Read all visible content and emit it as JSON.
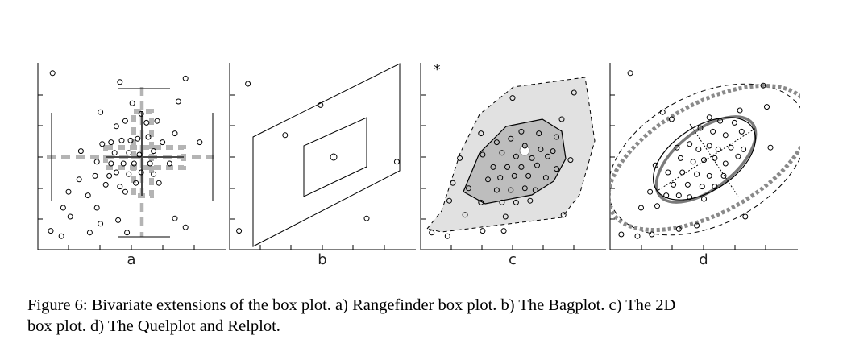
{
  "caption": {
    "line1": "Figure 6: Bivariate extensions of the box plot. a) Rangefinder box plot. b) The Bagplot. c) The 2D",
    "line2": "box plot. d) The Quelplot and Relplot."
  },
  "chart_data": [
    {
      "type": "scatter",
      "panel": "a",
      "title": "a",
      "grid": false,
      "xlim": [
        0,
        10
      ],
      "ylim": [
        0,
        10
      ],
      "points": [
        [
          0.6,
          9.6
        ],
        [
          4.4,
          9.1
        ],
        [
          8.1,
          9.3
        ],
        [
          7.7,
          8.0
        ],
        [
          5.1,
          7.9
        ],
        [
          5.6,
          7.3
        ],
        [
          3.3,
          7.4
        ],
        [
          4.2,
          6.6
        ],
        [
          4.7,
          6.9
        ],
        [
          5.9,
          6.8
        ],
        [
          6.5,
          6.9
        ],
        [
          8.9,
          5.7
        ],
        [
          2.2,
          5.2
        ],
        [
          3.4,
          5.6
        ],
        [
          3.9,
          5.7
        ],
        [
          4.5,
          5.8
        ],
        [
          5.0,
          5.8
        ],
        [
          5.4,
          5.9
        ],
        [
          6.0,
          6.0
        ],
        [
          6.8,
          5.7
        ],
        [
          7.5,
          6.2
        ],
        [
          4.1,
          5.1
        ],
        [
          4.9,
          5.1
        ],
        [
          5.5,
          5.0
        ],
        [
          6.3,
          5.2
        ],
        [
          3.1,
          4.6
        ],
        [
          3.9,
          4.5
        ],
        [
          4.6,
          4.5
        ],
        [
          5.2,
          4.5
        ],
        [
          6.1,
          4.5
        ],
        [
          7.2,
          4.5
        ],
        [
          3.0,
          3.8
        ],
        [
          3.8,
          3.8
        ],
        [
          4.2,
          4.0
        ],
        [
          4.9,
          3.9
        ],
        [
          5.6,
          4.0
        ],
        [
          6.3,
          3.9
        ],
        [
          2.1,
          3.6
        ],
        [
          3.6,
          3.3
        ],
        [
          4.4,
          3.2
        ],
        [
          5.3,
          3.4
        ],
        [
          6.6,
          3.4
        ],
        [
          1.5,
          2.9
        ],
        [
          2.6,
          2.7
        ],
        [
          4.7,
          2.9
        ],
        [
          1.2,
          2.0
        ],
        [
          3.1,
          2.0
        ],
        [
          1.6,
          1.5
        ],
        [
          3.3,
          1.1
        ],
        [
          4.3,
          1.3
        ],
        [
          7.5,
          1.4
        ],
        [
          0.5,
          0.7
        ],
        [
          1.1,
          0.4
        ],
        [
          2.7,
          0.6
        ],
        [
          4.8,
          0.6
        ],
        [
          8.1,
          0.9
        ]
      ]
    },
    {
      "type": "scatter",
      "panel": "b",
      "title": "b",
      "grid": false,
      "xlim": [
        0,
        10
      ],
      "ylim": [
        0,
        10
      ],
      "points": [
        [
          0.8,
          9.0
        ],
        [
          4.9,
          7.8
        ],
        [
          2.9,
          6.1
        ],
        [
          9.2,
          4.6
        ],
        [
          7.5,
          1.4
        ],
        [
          0.3,
          0.7
        ]
      ],
      "median": [
        5.5,
        4.0
      ]
    },
    {
      "type": "scatter",
      "panel": "c",
      "title": "c",
      "grid": false,
      "xlim": [
        0,
        10
      ],
      "ylim": [
        0,
        10
      ],
      "outlier_marker": "*",
      "points": [
        [
          5.0,
          8.2
        ],
        [
          8.5,
          8.5
        ],
        [
          7.8,
          7.0
        ],
        [
          3.2,
          6.2
        ],
        [
          5.5,
          6.3
        ],
        [
          6.5,
          6.2
        ],
        [
          7.5,
          6.0
        ],
        [
          2.0,
          4.8
        ],
        [
          4.1,
          5.7
        ],
        [
          4.9,
          5.9
        ],
        [
          5.7,
          5.5
        ],
        [
          6.6,
          5.3
        ],
        [
          7.3,
          5.2
        ],
        [
          3.3,
          5.0
        ],
        [
          4.4,
          5.1
        ],
        [
          5.2,
          4.9
        ],
        [
          6.1,
          4.8
        ],
        [
          7.0,
          4.9
        ],
        [
          8.3,
          4.7
        ],
        [
          3.9,
          4.3
        ],
        [
          4.7,
          4.3
        ],
        [
          5.5,
          4.3
        ],
        [
          6.4,
          4.4
        ],
        [
          7.5,
          4.2
        ],
        [
          3.6,
          3.6
        ],
        [
          4.3,
          3.7
        ],
        [
          5.1,
          3.8
        ],
        [
          5.9,
          3.8
        ],
        [
          6.9,
          3.7
        ],
        [
          1.6,
          3.4
        ],
        [
          2.5,
          3.1
        ],
        [
          4.1,
          3.0
        ],
        [
          4.9,
          3.0
        ],
        [
          5.7,
          3.1
        ],
        [
          6.3,
          3.0
        ],
        [
          1.4,
          2.4
        ],
        [
          3.2,
          2.3
        ],
        [
          4.4,
          2.3
        ],
        [
          5.2,
          2.3
        ],
        [
          6.0,
          2.4
        ],
        [
          2.3,
          1.6
        ],
        [
          4.6,
          1.5
        ],
        [
          7.9,
          1.6
        ],
        [
          0.4,
          0.6
        ],
        [
          1.3,
          0.4
        ],
        [
          3.3,
          0.7
        ],
        [
          4.5,
          0.7
        ]
      ],
      "median": [
        5.6,
        4.2
      ]
    },
    {
      "type": "scatter",
      "panel": "d",
      "title": "d",
      "grid": false,
      "xlim": [
        0,
        10
      ],
      "ylim": [
        0,
        10
      ],
      "points": [
        [
          0.9,
          9.6
        ],
        [
          8.3,
          8.9
        ],
        [
          2.7,
          7.4
        ],
        [
          5.3,
          7.1
        ],
        [
          5.9,
          6.9
        ],
        [
          6.7,
          6.8
        ],
        [
          7.0,
          7.5
        ],
        [
          8.5,
          7.7
        ],
        [
          4.8,
          6.5
        ],
        [
          5.5,
          6.3
        ],
        [
          6.2,
          6.1
        ],
        [
          7.1,
          6.3
        ],
        [
          3.5,
          5.4
        ],
        [
          4.2,
          5.6
        ],
        [
          4.7,
          5.3
        ],
        [
          5.3,
          5.5
        ],
        [
          5.8,
          5.3
        ],
        [
          6.5,
          5.4
        ],
        [
          7.2,
          5.3
        ],
        [
          3.7,
          4.8
        ],
        [
          4.4,
          4.6
        ],
        [
          5.0,
          4.7
        ],
        [
          5.6,
          4.8
        ],
        [
          6.2,
          4.5
        ],
        [
          6.9,
          4.9
        ],
        [
          2.3,
          4.4
        ],
        [
          3.0,
          4.0
        ],
        [
          3.8,
          4.0
        ],
        [
          4.6,
          3.9
        ],
        [
          5.3,
          3.8
        ],
        [
          6.1,
          3.8
        ],
        [
          3.3,
          3.3
        ],
        [
          4.1,
          3.3
        ],
        [
          4.9,
          3.2
        ],
        [
          5.6,
          3.2
        ],
        [
          2.0,
          2.9
        ],
        [
          2.9,
          2.7
        ],
        [
          3.6,
          2.7
        ],
        [
          4.2,
          2.6
        ],
        [
          5.0,
          2.5
        ],
        [
          1.5,
          2.0
        ],
        [
          2.4,
          2.1
        ],
        [
          7.3,
          1.5
        ],
        [
          0.4,
          0.5
        ],
        [
          1.3,
          0.4
        ],
        [
          2.1,
          0.5
        ],
        [
          3.6,
          0.8
        ],
        [
          4.6,
          1.0
        ],
        [
          8.7,
          5.4
        ],
        [
          3.2,
          7.0
        ]
      ]
    }
  ]
}
